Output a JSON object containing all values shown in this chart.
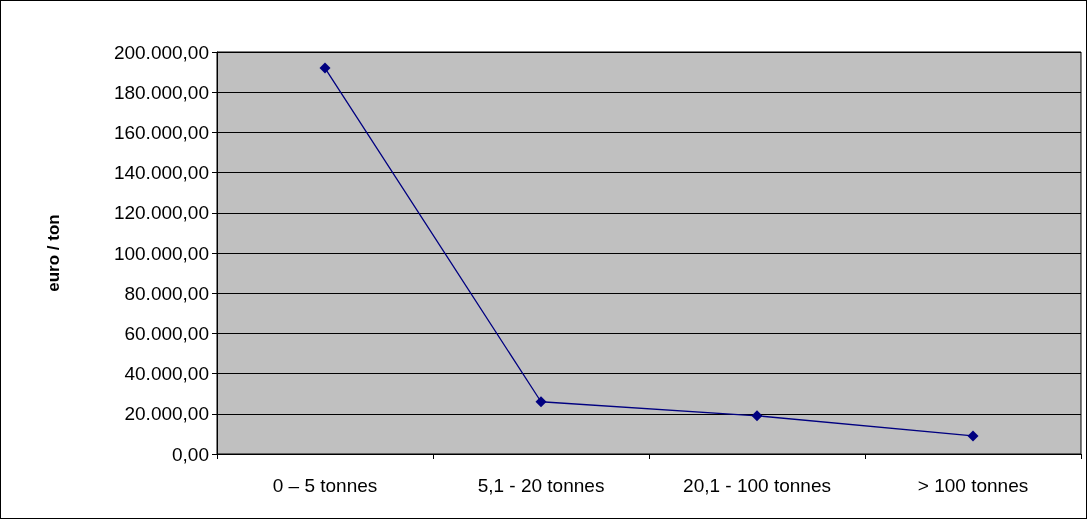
{
  "chart_data": {
    "type": "line",
    "ylabel": "euro / ton",
    "categories": [
      "0 – 5 tonnes",
      "5,1 - 20 tonnes",
      "20,1 - 100 tonnes",
      "> 100 tonnes"
    ],
    "series": [
      {
        "color": "#000080",
        "values": [
          192000,
          26000,
          19000,
          9000
        ]
      }
    ],
    "ylim": [
      0,
      200000
    ],
    "yticks": [
      {
        "value": 0,
        "label": "0,00"
      },
      {
        "value": 20000,
        "label": "20.000,00"
      },
      {
        "value": 40000,
        "label": "40.000,00"
      },
      {
        "value": 60000,
        "label": "60.000,00"
      },
      {
        "value": 80000,
        "label": "80.000,00"
      },
      {
        "value": 100000,
        "label": "100.000,00"
      },
      {
        "value": 120000,
        "label": "120.000,00"
      },
      {
        "value": 140000,
        "label": "140.000,00"
      },
      {
        "value": 160000,
        "label": "160.000,00"
      },
      {
        "value": 180000,
        "label": "180.000,00"
      },
      {
        "value": 200000,
        "label": "200.000,00"
      }
    ],
    "grid": "y",
    "marker": "diamond",
    "line_style": "solid"
  }
}
